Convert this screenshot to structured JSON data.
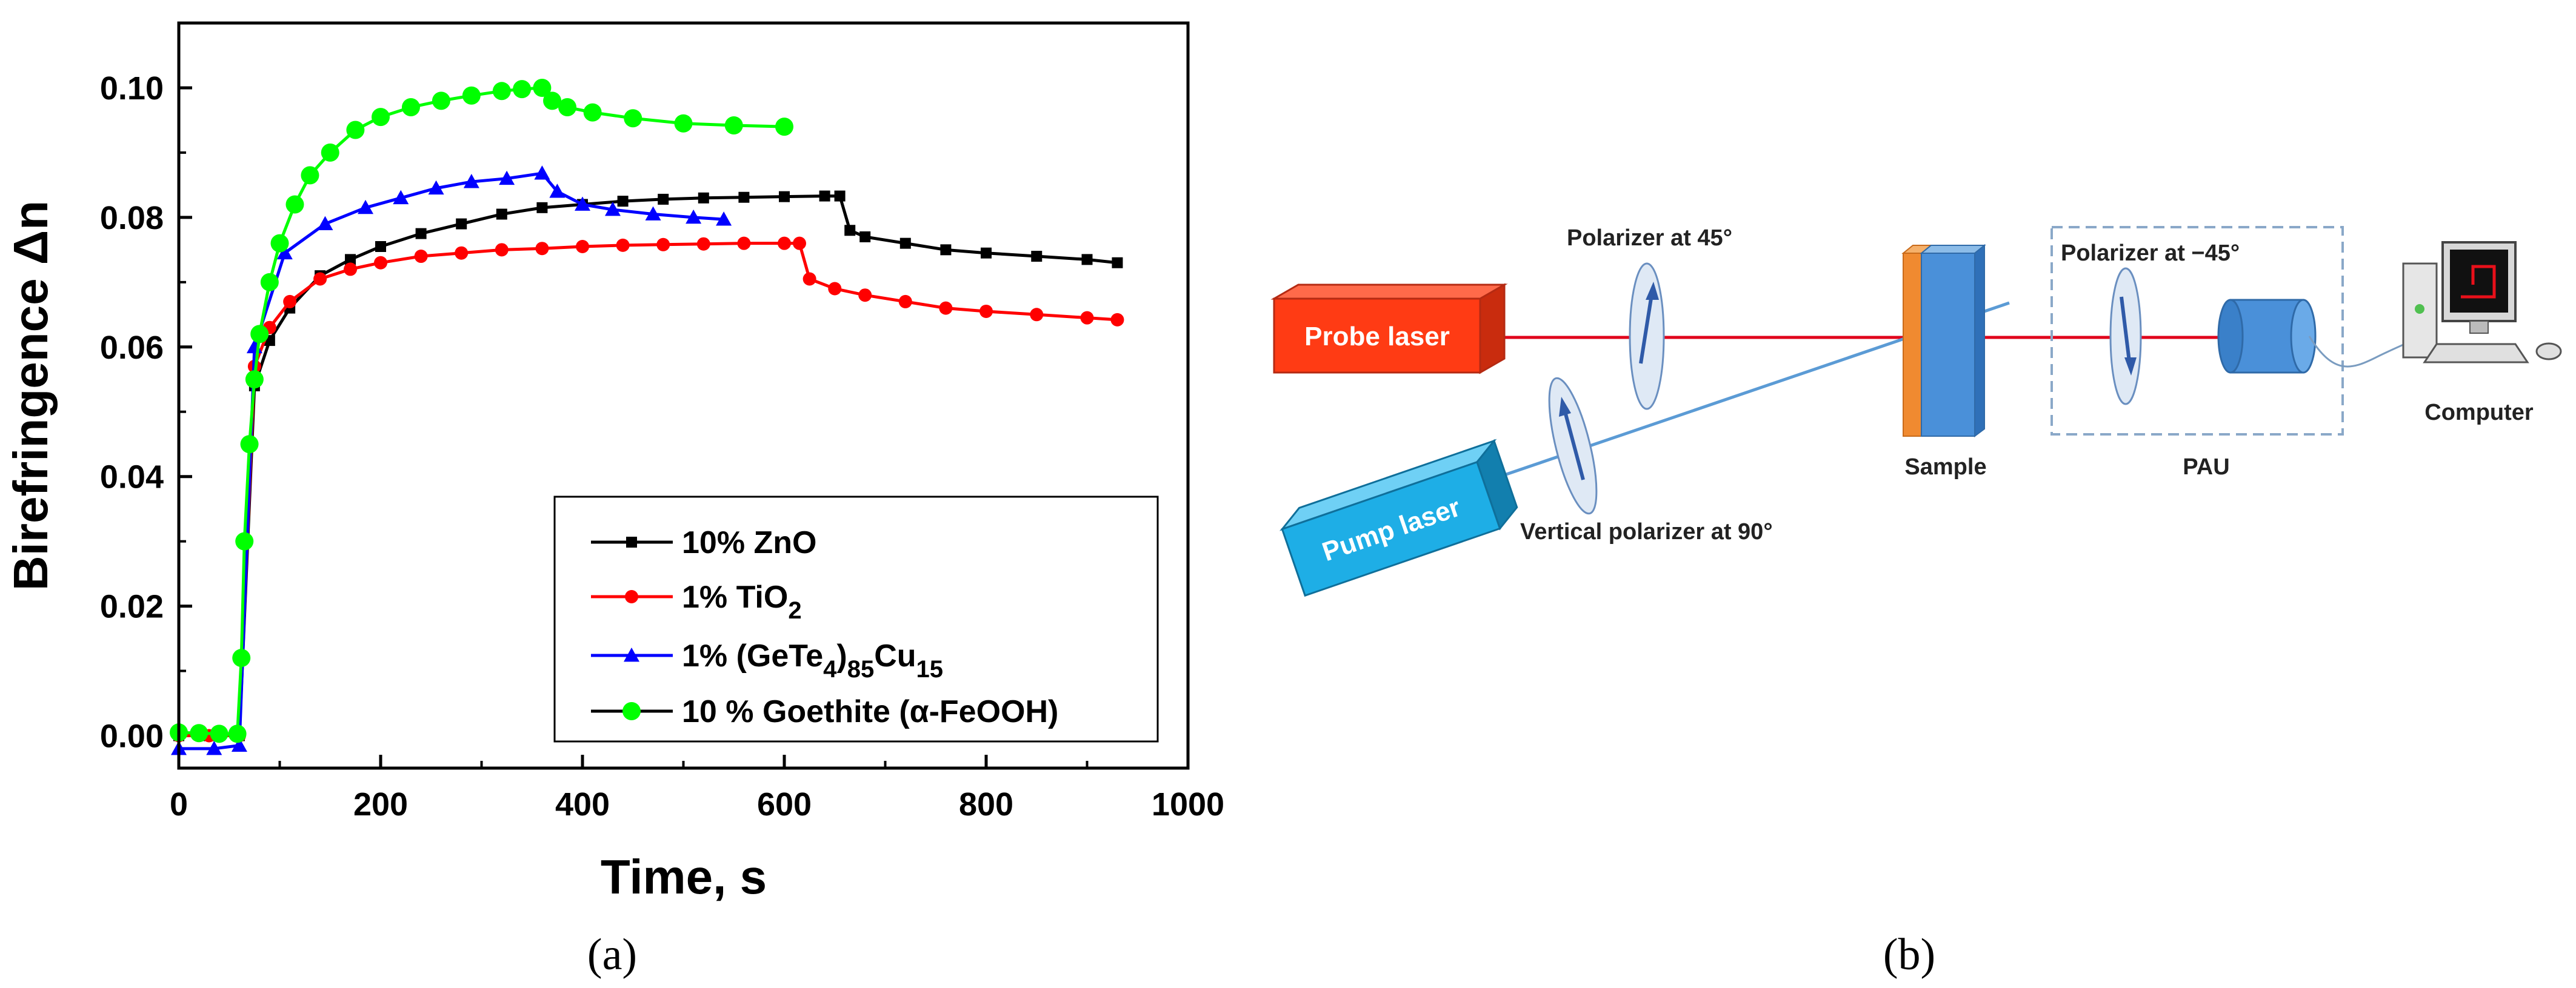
{
  "chart_data": {
    "type": "scatter",
    "xlabel": "Time, s",
    "ylabel": "Birefringence Δn",
    "xlim": [
      0,
      1000
    ],
    "ylim": [
      -0.005,
      0.11
    ],
    "xticks": [
      "0",
      "200",
      "400",
      "600",
      "800",
      "1000"
    ],
    "yticks": [
      "0.00",
      "0.02",
      "0.04",
      "0.06",
      "0.08",
      "0.10"
    ],
    "legend_position": "bottom-right",
    "series": [
      {
        "name": "10% ZnO",
        "legend": {
          "base": "10% ZnO"
        },
        "color": "#000000",
        "marker": "square",
        "x": [
          0,
          30,
          60,
          75,
          90,
          110,
          140,
          170,
          200,
          240,
          280,
          320,
          360,
          400,
          440,
          480,
          520,
          560,
          600,
          640,
          655,
          665,
          680,
          720,
          760,
          800,
          850,
          900,
          930
        ],
        "y": [
          0.0,
          0.0,
          0.0,
          0.054,
          0.061,
          0.066,
          0.071,
          0.0735,
          0.0755,
          0.0775,
          0.079,
          0.0805,
          0.0815,
          0.082,
          0.0825,
          0.0828,
          0.083,
          0.0831,
          0.0832,
          0.0833,
          0.0833,
          0.078,
          0.077,
          0.076,
          0.075,
          0.0745,
          0.074,
          0.0735,
          0.073
        ]
      },
      {
        "name": "1% TiO2",
        "legend": {
          "base": "1% TiO",
          "sub": "2"
        },
        "color": "#ff0000",
        "marker": "circle",
        "x": [
          0,
          30,
          60,
          75,
          90,
          110,
          140,
          170,
          200,
          240,
          280,
          320,
          360,
          400,
          440,
          480,
          520,
          560,
          600,
          615,
          625,
          650,
          680,
          720,
          760,
          800,
          850,
          900,
          930
        ],
        "y": [
          0.0,
          0.0,
          0.0,
          0.057,
          0.063,
          0.067,
          0.0705,
          0.072,
          0.073,
          0.074,
          0.0745,
          0.075,
          0.0752,
          0.0755,
          0.0757,
          0.0758,
          0.0759,
          0.076,
          0.076,
          0.076,
          0.0705,
          0.069,
          0.068,
          0.067,
          0.066,
          0.0655,
          0.065,
          0.0645,
          0.0642
        ]
      },
      {
        "name": "1% (GeTe4)85Cu15",
        "legend": {
          "base": "1% (GeTe",
          "sub": "4",
          "mid": ")",
          "sub2": "85",
          "mid2": "Cu",
          "sub3": "15"
        },
        "color": "#0000ff",
        "marker": "triangle",
        "x": [
          0,
          35,
          60,
          75,
          105,
          145,
          185,
          220,
          255,
          290,
          325,
          360,
          375,
          400,
          430,
          470,
          510,
          540
        ],
        "y": [
          -0.002,
          -0.002,
          -0.0015,
          0.06,
          0.0745,
          0.079,
          0.0815,
          0.083,
          0.0845,
          0.0855,
          0.086,
          0.0868,
          0.084,
          0.082,
          0.0812,
          0.0805,
          0.08,
          0.0797
        ]
      },
      {
        "name": "10 % Goethite (α-FeOOH)",
        "legend": {
          "base": "10 % Goethite (α-FeOOH)"
        },
        "color": "#00ff00",
        "marker": "circle",
        "x": [
          0,
          20,
          40,
          58,
          62,
          65,
          70,
          75,
          80,
          90,
          100,
          115,
          130,
          150,
          175,
          200,
          230,
          260,
          290,
          320,
          340,
          360,
          370,
          385,
          410,
          450,
          500,
          550,
          600
        ],
        "y": [
          0.0005,
          0.0004,
          0.0003,
          0.0003,
          0.012,
          0.03,
          0.045,
          0.055,
          0.062,
          0.07,
          0.076,
          0.082,
          0.0865,
          0.09,
          0.0935,
          0.0955,
          0.097,
          0.098,
          0.0988,
          0.0995,
          0.0998,
          0.1,
          0.098,
          0.097,
          0.0962,
          0.0953,
          0.0945,
          0.0942,
          0.094
        ]
      }
    ]
  },
  "captions": {
    "a": "(a)",
    "b": "(b)"
  },
  "diagram": {
    "probe_laser": "Probe laser",
    "pump_laser": "Pump laser",
    "polarizer_45": "Polarizer at 45°",
    "vertical_polarizer": "Vertical polarizer at 90°",
    "sample": "Sample",
    "polarizer_m45": "Polarizer at −45°",
    "pau": "PAU",
    "computer": "Computer",
    "colors": {
      "probe_laser": "#ff3b14",
      "pump_laser": "#1eaee6",
      "probe_beam": "#e0001a",
      "pump_beam": "#5b9bd5",
      "sample": "#4a90d9",
      "sample_edge": "#f08a30"
    }
  }
}
